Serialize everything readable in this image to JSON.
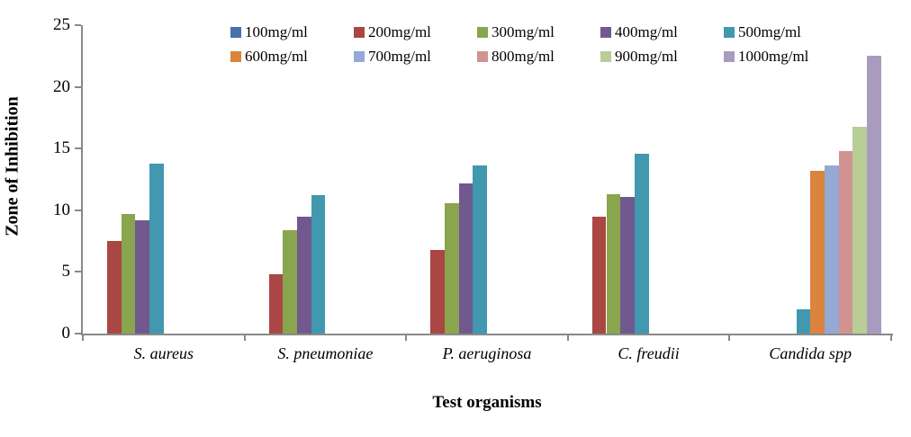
{
  "chart_data": {
    "type": "bar",
    "title": "",
    "xlabel": "Test organisms",
    "ylabel": "Zone of Inhibition",
    "ylim": [
      0,
      25
    ],
    "yticks": [
      0,
      5,
      10,
      15,
      20,
      25
    ],
    "grid": false,
    "legend_position": "top-center, 2 rows of 5",
    "axis_color": "#898989",
    "categories": [
      "S. aureus",
      "S. pneumoniae",
      "P. aeruginosa",
      "C. freudii",
      "Candida spp"
    ],
    "series": [
      {
        "name": "100mg/ml",
        "color": "#4572A7",
        "values": [
          0,
          0,
          0,
          0,
          0
        ]
      },
      {
        "name": "200mg/ml",
        "color": "#AA4643",
        "values": [
          7.5,
          4.8,
          6.8,
          9.5,
          0
        ]
      },
      {
        "name": "300mg/ml",
        "color": "#89A54E",
        "values": [
          9.7,
          8.4,
          10.6,
          11.3,
          0
        ]
      },
      {
        "name": "400mg/ml",
        "color": "#71588F",
        "values": [
          9.2,
          9.5,
          12.2,
          11.1,
          0
        ]
      },
      {
        "name": "500mg/ml",
        "color": "#4198AF",
        "values": [
          13.8,
          11.2,
          13.6,
          14.6,
          2.0
        ]
      },
      {
        "name": "600mg/ml",
        "color": "#DB843D",
        "values": [
          0,
          0,
          0,
          0,
          13.2
        ]
      },
      {
        "name": "700mg/ml",
        "color": "#94A9D4",
        "values": [
          0,
          0,
          0,
          0,
          13.6
        ]
      },
      {
        "name": "800mg/ml",
        "color": "#D19392",
        "values": [
          0,
          0,
          0,
          0,
          14.8
        ]
      },
      {
        "name": "900mg/ml",
        "color": "#B9CD96",
        "values": [
          0,
          0,
          0,
          0,
          16.8
        ]
      },
      {
        "name": "1000mg/ml",
        "color": "#A99BBD",
        "values": [
          0,
          0,
          0,
          0,
          22.5
        ]
      }
    ]
  }
}
